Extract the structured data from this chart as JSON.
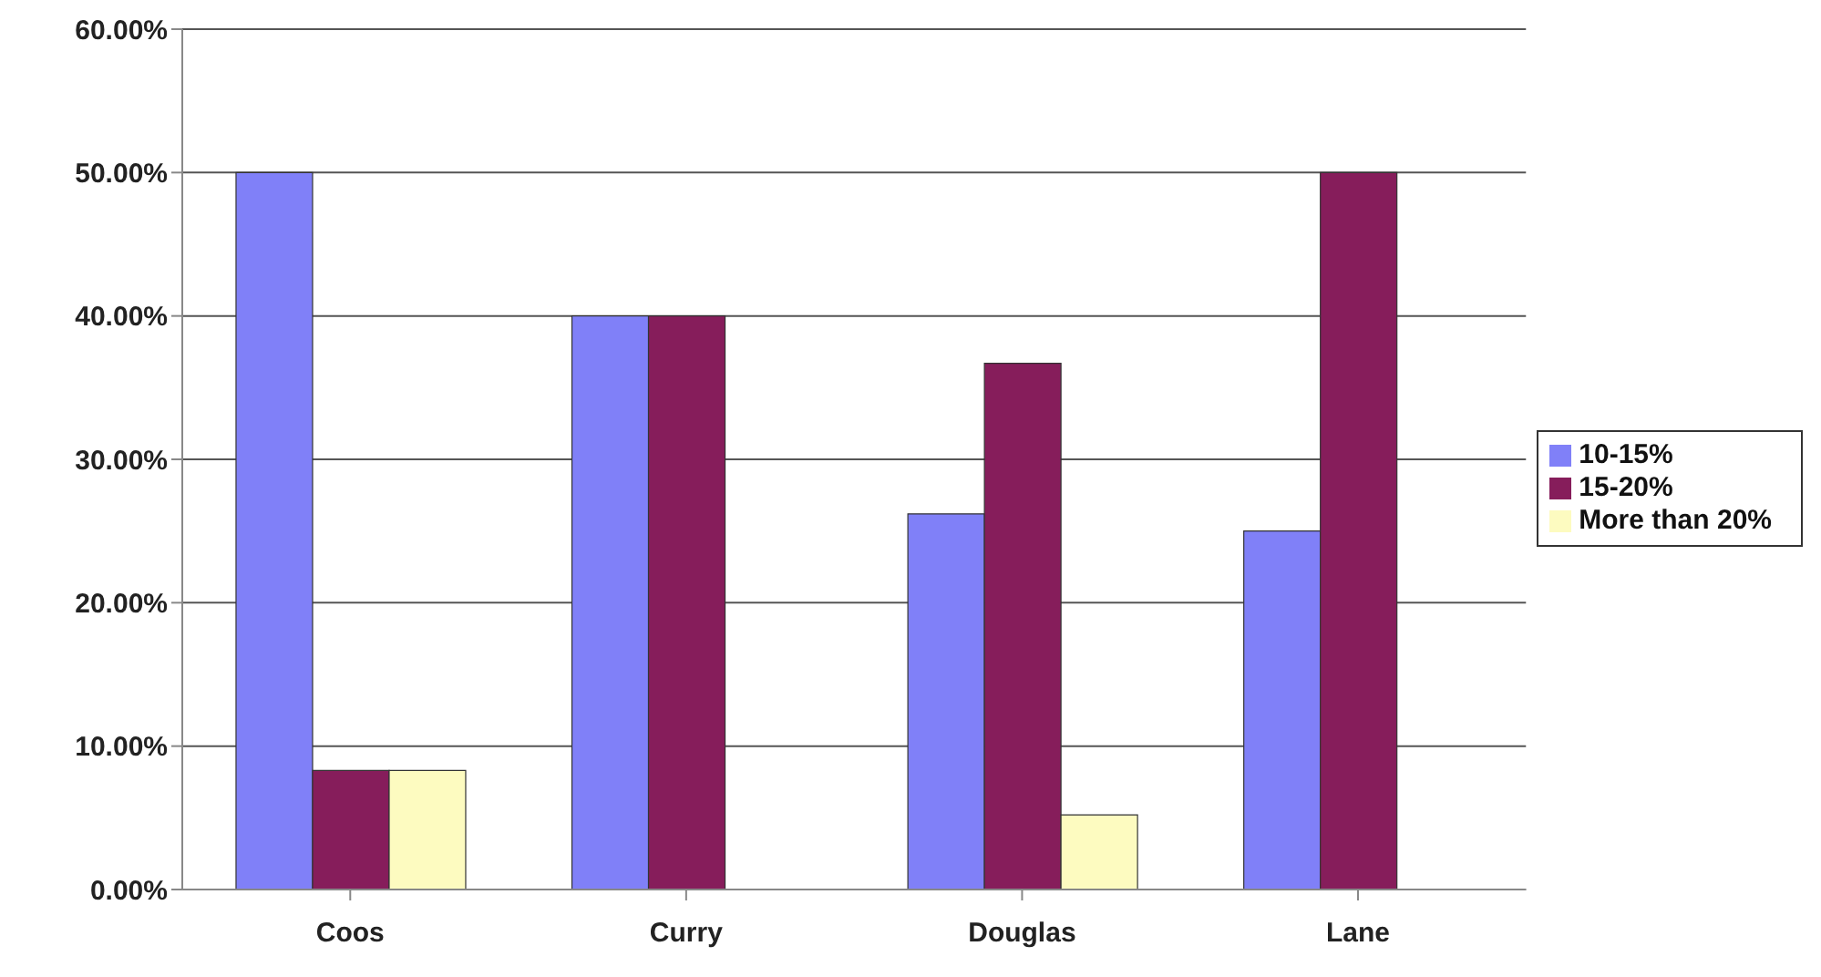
{
  "chart_data": {
    "type": "bar",
    "categories": [
      "Coos",
      "Curry",
      "Douglas",
      "Lane"
    ],
    "series": [
      {
        "name": "10-15%",
        "color": "#8080f8",
        "values": [
          50,
          40,
          26.2,
          25
        ]
      },
      {
        "name": "15-20%",
        "color": "#861d5b",
        "values": [
          8.3,
          40,
          36.7,
          50
        ]
      },
      {
        "name": "More than 20%",
        "color": "#fdfbc0",
        "values": [
          8.3,
          null,
          5.2,
          null
        ]
      }
    ],
    "ylim": [
      0,
      60
    ],
    "yticks": [
      {
        "value": 0,
        "label": "0.00%"
      },
      {
        "value": 10,
        "label": "10.00%"
      },
      {
        "value": 20,
        "label": "20.00%"
      },
      {
        "value": 30,
        "label": "30.00%"
      },
      {
        "value": 40,
        "label": "40.00%"
      },
      {
        "value": 50,
        "label": "50.00%"
      },
      {
        "value": 60,
        "label": "60.00%"
      }
    ],
    "grid": "y",
    "legend": "right"
  }
}
